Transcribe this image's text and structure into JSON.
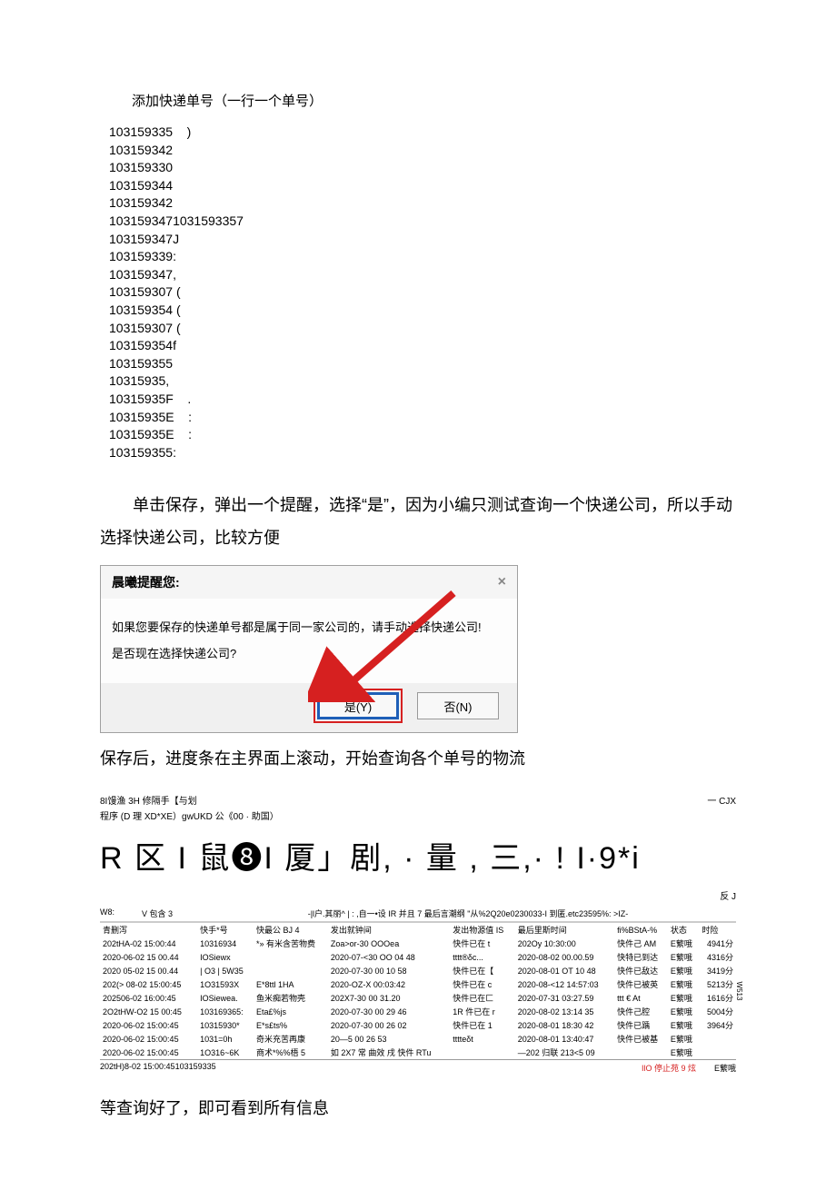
{
  "title": "添加快递单号（一行一个单号）",
  "numbers": [
    "103159335    )",
    "103159342",
    "103159330",
    "103159344",
    "103159342",
    "1031593471031593357",
    "103159347J",
    "103159339:",
    "103159347,",
    "103159307 (",
    "103159354 (",
    "103159307 (",
    "103159354f",
    "103159355",
    "10315935,",
    "10315935F    .",
    "10315935E    :",
    "10315935E    :",
    "103159355:"
  ],
  "para1": "单击保存，弹出一个提醒，选择“是”，因为小编只测试查询一个快递公司，所以手动选择快递公司，比较方便",
  "dialog": {
    "title": "晨曦提醒您:",
    "line1": "如果您要保存的快递单号都是属于同一家公司的，请手动选择快递公司!",
    "line2": "是否现在选择快递公司?",
    "yes": "是(Y)",
    "no": "否(N)"
  },
  "para2": "保存后，进度条在主界面上滚动，开始查询各个单号的物流",
  "app": {
    "header_left": "8I馒渔 3H 修隔手【与划",
    "header_right": "一 CJX",
    "subheader": "程序 (D 理 XD*XE）gwUKD 公《00 · 助国）",
    "big_row": "R 区 I 鼠❽I 厦」剧, · 量 , 三,· ! I·9*i",
    "reflect": "反 J",
    "w8_left": "W8:",
    "w8_mid_left": "V 包含 3",
    "w8_mid": "-|l户.其丽^ |  : ,自一•设 IR 并且 7 最后言潮纲  \"从%2Q20e0230033-I 到匿.etc23595%:   >IZ-"
  },
  "columns": [
    "青删泻",
    "快手*号",
    "快最公 BJ 4",
    "发出就钟间",
    "发出物源值 IS",
    "最后里斯时间",
    "fi%BStA-%",
    "状态",
    "时险"
  ],
  "rows": [
    [
      "202tHA-02 15:00:44",
      "10316934",
      "*» 有米含苦物费",
      "Zoa>or-30 OOOea",
      "快件已在 t",
      "202Oy 10:30:00",
      "快件己 AM",
      "E蘩哦",
      "4941分"
    ],
    [
      "2020-06-02 15 00.44",
      "IOSiewx",
      "",
      "2020-07-<30 OO 04 48",
      "tttt®δc...",
      "2020-08-02 00.00.59",
      "快特已到达",
      "E蘩哦",
      "4316分"
    ],
    [
      "2020 05-02 15 00.44",
      "| O3 | 5W35",
      "",
      "2020-07-30 00 10 58",
      "快件已在【",
      "2020-08-01 OT 10 48",
      "快件已敌达",
      "E蘩哦",
      "3419分"
    ],
    [
      "202(> 08-02 15:00:45",
      "1O31593X",
      "E*8ttl 1HA",
      "2020-OZ-X 00:03:42",
      "快件已在 c",
      "2020-08-<12 14:57:03",
      "快件已被英",
      "E蘩哦",
      "5213分"
    ],
    [
      "202506-02 16:00:45",
      "IOSiewea.",
      "鱼米痴若物壳",
      "202X7-30 00 31.20",
      "快件已在匚",
      "2020-07-31 03:27.59",
      "ttt € At",
      "E蘩哦",
      "1616分"
    ],
    [
      "2O2tHW-O2 15 00:45",
      "103169365:",
      "Eta£%js",
      "2020-07-30 00 29 46",
      "1R 件已在 r",
      "2020-08-02 13:14 35",
      "快件己腔",
      "E蘩哦",
      "5004分"
    ],
    [
      "2020-06-02 15:00:45",
      "10315930*",
      "E*s£ts%",
      "2020-07-30 00 26 02",
      "快件已在 1",
      "2020-08-01 18:30 42",
      "快件已踽",
      "E蘩哦",
      "3964分"
    ],
    [
      "2020-06-02 15:00:45",
      "1031=0h",
      "奇米充苦再康",
      "20—5 00 26 53",
      "tttteδt",
      "2020-08-01 13:40:47",
      "快件已被基",
      "E蘩哦",
      ""
    ],
    [
      "2020-06-02 15:00:45",
      "1O316~6K",
      "商术*%%梧 5",
      "如 2X7 常 曲效 戌 快件 RTu",
      "",
      "—202 归联 213<5 09",
      "",
      "E蘩哦",
      ""
    ]
  ],
  "footer": {
    "left": "202tH)8-02 15:00:45",
    "num": "103159335",
    "right": "IlO 停止苑 9 炫",
    "end": "E蘩哦"
  },
  "para3": "等查询好了，即可看到所有信息",
  "side_label": "W513"
}
